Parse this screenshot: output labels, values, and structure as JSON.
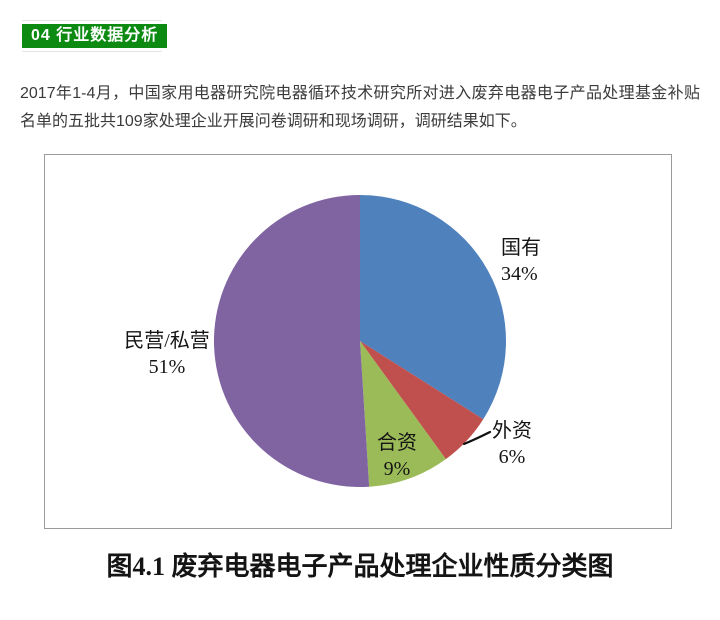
{
  "header": {
    "badge_label": "04 行业数据分析",
    "badge_color": "#0c8a12"
  },
  "paragraph": "2017年1-4月，中国家用电器研究院电器循环技术研究所对进入废弃电器电子产品处理基金补贴名单的五批共109家处理企业开展问卷调研和现场调研，调研结果如下。",
  "chart_data": {
    "type": "pie",
    "title": "图4.1 废弃电器电子产品处理企业性质分类图",
    "unit": "%",
    "start_angle_deg": 0,
    "direction": "clockwise",
    "legend_position": "none",
    "segments": [
      {
        "label": "国有",
        "value": 34,
        "pct_label": "34%",
        "color": "#4F81BD",
        "label_position": "outside-right"
      },
      {
        "label": "外资",
        "value": 6,
        "pct_label": "6%",
        "color": "#C0504D",
        "label_position": "outside-with-leader-line"
      },
      {
        "label": "合资",
        "value": 9,
        "pct_label": "9%",
        "color": "#9BBB59",
        "label_position": "inside"
      },
      {
        "label": "民营/私营",
        "value": 51,
        "pct_label": "51%",
        "color": "#8064A2",
        "label_position": "outside-left"
      }
    ]
  },
  "caption": "图4.1 废弃电器电子产品处理企业性质分类图"
}
